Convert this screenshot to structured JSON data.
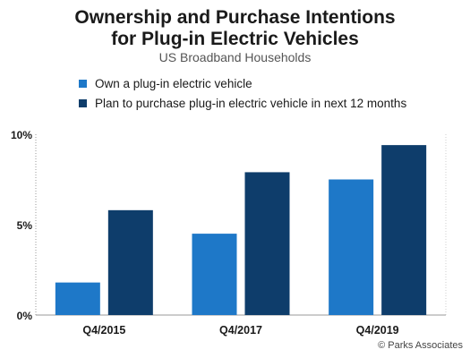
{
  "chart_data": {
    "type": "bar",
    "title": "Ownership and Purchase Intentions for Plug-in Electric Vehicles",
    "title_lines": [
      "Ownership and Purchase Intentions",
      "for Plug-in Electric Vehicles"
    ],
    "subtitle": "US Broadband Households",
    "categories": [
      "Q4/2015",
      "Q4/2017",
      "Q4/2019"
    ],
    "series": [
      {
        "name": "Own a plug-in electric vehicle",
        "color": "#1e78c8",
        "values": [
          1.8,
          4.5,
          7.5
        ]
      },
      {
        "name": "Plan to purchase plug-in electric vehicle in next 12 months",
        "color": "#0e3d6b",
        "values": [
          5.8,
          7.9,
          9.4
        ]
      }
    ],
    "y_ticks": [
      0,
      5,
      10
    ],
    "y_tick_labels": [
      "0%",
      "5%",
      "10%"
    ],
    "ylim": [
      0,
      10
    ],
    "xlabel": "",
    "ylabel": "",
    "legend_position": "top-left",
    "grid": false
  },
  "source": "© Parks Associates"
}
